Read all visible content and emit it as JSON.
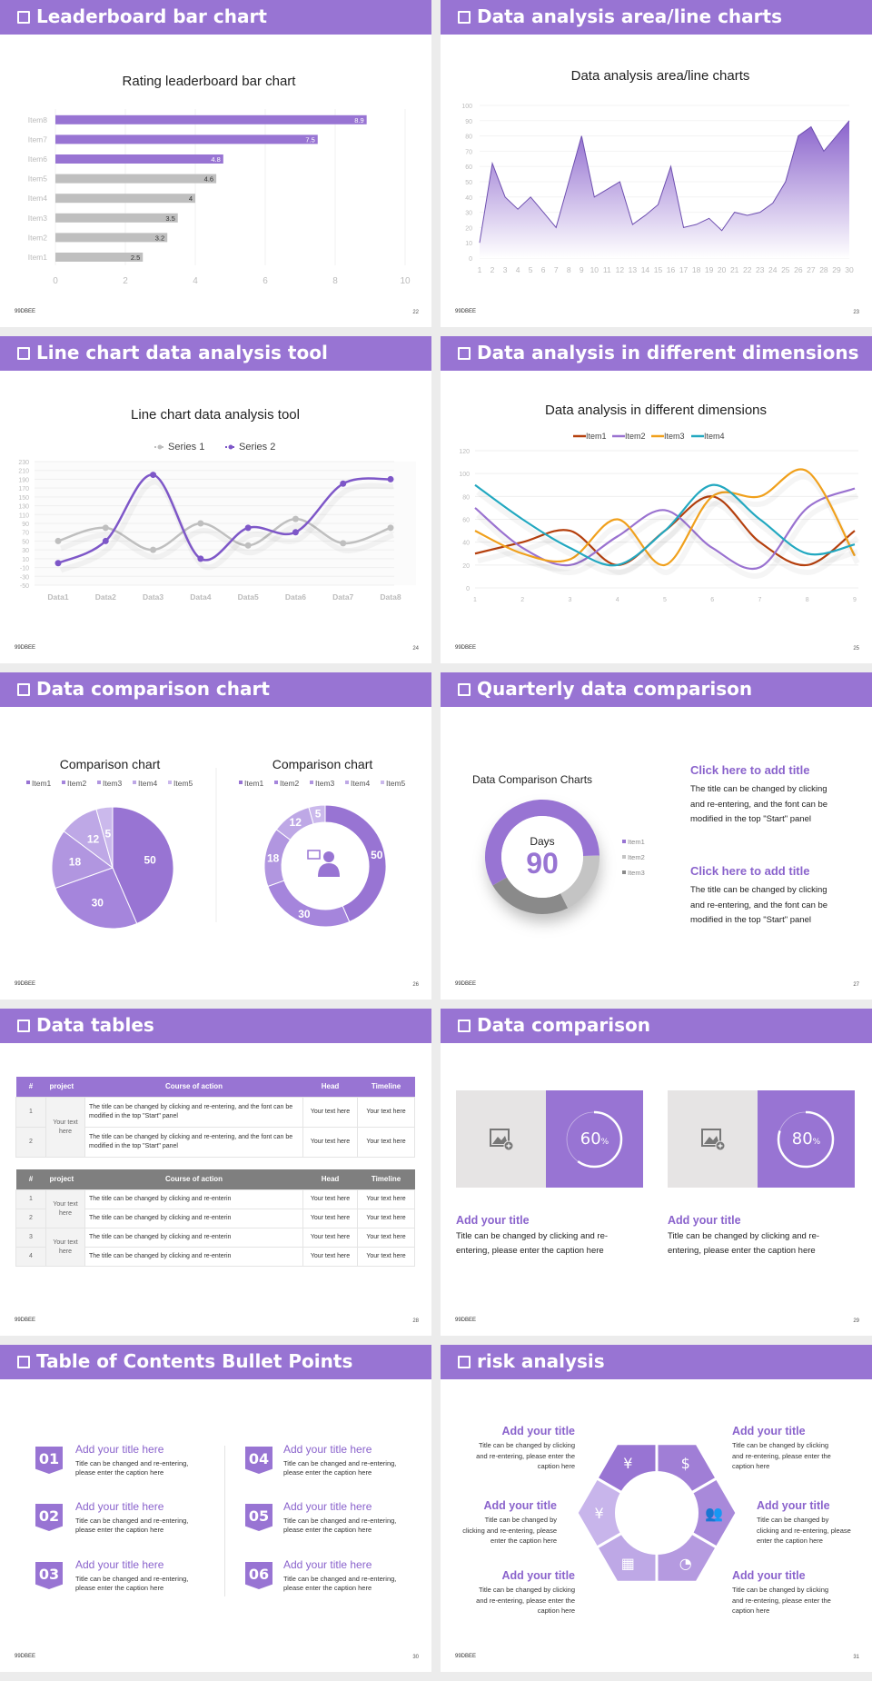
{
  "footer_text": "99DBEE",
  "colors": {
    "accent": "#9874d3",
    "gray": "#bfbfbf",
    "dark_gray": "#888888"
  },
  "slides": [
    {
      "title": "Leaderboard bar chart",
      "page": "22"
    },
    {
      "title": "Data analysis area/line charts",
      "page": "23"
    },
    {
      "title": "Line chart data analysis tool",
      "page": "24"
    },
    {
      "title": "Data analysis in different dimensions",
      "page": "25"
    },
    {
      "title": "Data comparison chart",
      "page": "26"
    },
    {
      "title": "Quarterly data comparison",
      "page": "27"
    },
    {
      "title": "Data tables",
      "page": "28"
    },
    {
      "title": "Data comparison",
      "page": "29"
    },
    {
      "title": "Table of Contents Bullet Points",
      "page": "30"
    },
    {
      "title": "risk analysis",
      "page": "31"
    }
  ],
  "chart_data": [
    {
      "type": "bar",
      "orientation": "horizontal",
      "title": "Rating leaderboard bar chart",
      "categories": [
        "Item1",
        "Item2",
        "Item3",
        "Item4",
        "Item5",
        "Item6",
        "Item7",
        "Item8"
      ],
      "values": [
        2.5,
        3.2,
        3.5,
        4,
        4.6,
        4.8,
        7.5,
        8.9
      ],
      "bar_colors": [
        "#bfbfbf",
        "#bfbfbf",
        "#bfbfbf",
        "#bfbfbf",
        "#bfbfbf",
        "#9874d3",
        "#9874d3",
        "#9874d3"
      ],
      "xlim": [
        0,
        10
      ],
      "xticks": [
        "0",
        "2",
        "4",
        "6",
        "8",
        "10"
      ],
      "grid": true
    },
    {
      "type": "area",
      "title": "Data analysis area/line charts",
      "x": [
        "1",
        "2",
        "3",
        "4",
        "5",
        "6",
        "7",
        "8",
        "9",
        "10",
        "11",
        "12",
        "13",
        "14",
        "15",
        "16",
        "17",
        "18",
        "19",
        "20",
        "21",
        "22",
        "23",
        "24",
        "25",
        "26",
        "27",
        "28",
        "29",
        "30"
      ],
      "values": [
        10,
        62,
        40,
        32,
        40,
        30,
        20,
        50,
        80,
        40,
        45,
        50,
        22,
        28,
        35,
        60,
        20,
        22,
        26,
        18,
        30,
        28,
        30,
        36,
        50,
        80,
        86,
        70,
        80,
        90
      ],
      "ylim": [
        0,
        100
      ],
      "yticks": [
        "0",
        "10",
        "20",
        "30",
        "40",
        "50",
        "60",
        "70",
        "80",
        "90",
        "100"
      ],
      "color": "#9874d3"
    },
    {
      "type": "line",
      "smooth": true,
      "title": "Line chart data analysis tool",
      "categories": [
        "Data1",
        "Data2",
        "Data3",
        "Data4",
        "Data5",
        "Data6",
        "Data7",
        "Data8"
      ],
      "series": [
        {
          "name": "Series 1",
          "color": "#bfbfbf",
          "values": [
            50,
            80,
            30,
            90,
            40,
            100,
            45,
            80
          ]
        },
        {
          "name": "Series 2",
          "color": "#7e57c8",
          "values": [
            0,
            50,
            200,
            10,
            80,
            70,
            180,
            190
          ]
        }
      ],
      "ylim": [
        -50,
        230
      ],
      "yticks": [
        "-50",
        "-30",
        "-10",
        "10",
        "30",
        "50",
        "70",
        "90",
        "110",
        "130",
        "150",
        "170",
        "190",
        "210",
        "230"
      ],
      "legend": "top"
    },
    {
      "type": "line",
      "smooth": true,
      "title": "Data analysis in different dimensions",
      "categories": [
        "1",
        "2",
        "3",
        "4",
        "5",
        "6",
        "7",
        "8",
        "9"
      ],
      "series": [
        {
          "name": "Item1",
          "color": "#b5400e",
          "values": [
            30,
            40,
            50,
            20,
            50,
            80,
            40,
            20,
            50
          ]
        },
        {
          "name": "Item2",
          "color": "#9a72d0",
          "values": [
            70,
            35,
            20,
            45,
            68,
            35,
            18,
            70,
            87
          ]
        },
        {
          "name": "Item3",
          "color": "#f0a01c",
          "values": [
            50,
            30,
            25,
            60,
            20,
            80,
            80,
            102,
            28
          ]
        },
        {
          "name": "Item4",
          "color": "#23a8c0",
          "values": [
            90,
            60,
            35,
            20,
            50,
            90,
            60,
            30,
            38
          ]
        }
      ],
      "ylim": [
        0,
        120
      ],
      "yticks": [
        "0",
        "20",
        "40",
        "60",
        "80",
        "100",
        "120"
      ],
      "legend": "top"
    },
    {
      "type": "pie",
      "title": "Comparison chart",
      "categories": [
        "Item1",
        "Item2",
        "Item3",
        "Item4",
        "Item5"
      ],
      "values": [
        50,
        30,
        18,
        12,
        5
      ],
      "colors": [
        "#9874d3",
        "#a585dc",
        "#b196e0",
        "#bea8e6",
        "#cbb9ec"
      ],
      "legend": "top"
    },
    {
      "type": "pie",
      "donut": true,
      "title": "Comparison chart",
      "categories": [
        "Item1",
        "Item2",
        "Item3",
        "Item4",
        "Item5"
      ],
      "values": [
        50,
        30,
        18,
        12,
        5
      ],
      "colors": [
        "#9874d3",
        "#a585dc",
        "#b196e0",
        "#bea8e6",
        "#cbb9ec"
      ],
      "legend": "top",
      "center_icon": "presenter-icon"
    },
    {
      "type": "pie",
      "donut": true,
      "title": "Data Comparison Charts",
      "categories": [
        "Item1",
        "Item2",
        "Item3"
      ],
      "values": [
        58,
        18,
        24
      ],
      "colors": [
        "#9874d3",
        "#c4c4c4",
        "#8a8a8a"
      ],
      "legend": "right",
      "center_label": "Days",
      "center_value": "90"
    }
  ],
  "quarterly": {
    "blocks": [
      {
        "title": "Click here to add title",
        "lines": [
          "The title can be changed by clicking",
          "and re-entering, and the font can be",
          "modified in the top \"Start\" panel"
        ]
      },
      {
        "title": "Click here to add title",
        "lines": [
          "The title can be changed by clicking",
          "and re-entering, and the font can be",
          "modified in the top \"Start\" panel"
        ]
      }
    ]
  },
  "tables": {
    "headers": [
      "#",
      "project",
      "Course of action",
      "Head",
      "Timeline"
    ],
    "table1": {
      "project": "Your text here",
      "rows": [
        {
          "num": "1",
          "action": "The title can be changed by clicking and re-entering, and the font can be modified in the top \"Start\" panel",
          "head": "Your text here",
          "timeline": "Your text here"
        },
        {
          "num": "2",
          "action": "The title can be changed by clicking and re-entering, and the font can be modified in the top \"Start\" panel",
          "head": "Your text here",
          "timeline": "Your text here"
        }
      ]
    },
    "table2": {
      "projects": [
        "Your text here",
        "Your text here"
      ],
      "rows": [
        {
          "num": "1",
          "action": "The title can be changed by clicking and re-enterin",
          "head": "Your text here",
          "timeline": "Your text here"
        },
        {
          "num": "2",
          "action": "The title can be changed by clicking and re-enterin",
          "head": "Your text here",
          "timeline": "Your text here"
        },
        {
          "num": "3",
          "action": "The title can be changed by clicking and re-enterin",
          "head": "Your text here",
          "timeline": "Your text here"
        },
        {
          "num": "4",
          "action": "The title can be changed by clicking and re-enterin",
          "head": "Your text here",
          "timeline": "Your text here"
        }
      ]
    }
  },
  "data_comparison": {
    "cards": [
      {
        "percent": 60,
        "value": "60",
        "unit": "%",
        "title": "Add your title",
        "lines": [
          "Title can be changed by clicking and re-",
          "entering, please enter the caption here"
        ],
        "image_icon": "add-image-icon"
      },
      {
        "percent": 80,
        "value": "80",
        "unit": "%",
        "title": "Add your title",
        "lines": [
          "Title can be changed by clicking and re-",
          "entering, please enter the caption here"
        ],
        "image_icon": "add-image-icon"
      }
    ]
  },
  "toc": {
    "items": [
      {
        "num": "01",
        "title": "Add your title here",
        "lines": [
          "Title can be changed and re-entering,",
          "please enter the caption here"
        ]
      },
      {
        "num": "02",
        "title": "Add your title here",
        "lines": [
          "Title can be changed and re-entering,",
          "please enter the caption here"
        ]
      },
      {
        "num": "03",
        "title": "Add your title here",
        "lines": [
          "Title can be changed and re-entering,",
          "please enter the caption here"
        ]
      },
      {
        "num": "04",
        "title": "Add your title here",
        "lines": [
          "Title can be changed and re-entering,",
          "please enter the caption here"
        ]
      },
      {
        "num": "05",
        "title": "Add your title here",
        "lines": [
          "Title can be changed and re-entering,",
          "please enter the caption here"
        ]
      },
      {
        "num": "06",
        "title": "Add your title here",
        "lines": [
          "Title can be changed and re-entering,",
          "please enter the caption here"
        ]
      }
    ]
  },
  "risk": {
    "items": [
      {
        "title": "Add your title",
        "lines": [
          "Title can be changed by clicking",
          "and re-entering, please enter the",
          "caption here"
        ]
      },
      {
        "title": "Add your title",
        "lines": [
          "Title can be changed by",
          "clicking and re-entering, please",
          "enter the caption here"
        ]
      },
      {
        "title": "Add your title",
        "lines": [
          "Title can be changed by clicking",
          "and re-entering, please enter the",
          "caption here"
        ]
      },
      {
        "title": "Add your title",
        "lines": [
          "Title can be changed by clicking",
          "and re-entering, please enter the",
          "caption here"
        ]
      },
      {
        "title": "Add your title",
        "lines": [
          "Title can be changed by",
          "clicking and re-entering, please",
          "enter the caption here"
        ]
      },
      {
        "title": "Add your title",
        "lines": [
          "Title can be changed by clicking",
          "and re-entering, please enter the",
          "caption here"
        ]
      }
    ],
    "segment_icons": [
      "money-bag-icon",
      "coins-dollar-icon",
      "users-icon",
      "pie-chart-icon",
      "buildings-icon",
      "yen-hand-icon"
    ],
    "segment_colors": [
      "#9874d3",
      "#a07ed6",
      "#a889da",
      "#b59ae0",
      "#bea8e6",
      "#c8b5eb"
    ]
  }
}
